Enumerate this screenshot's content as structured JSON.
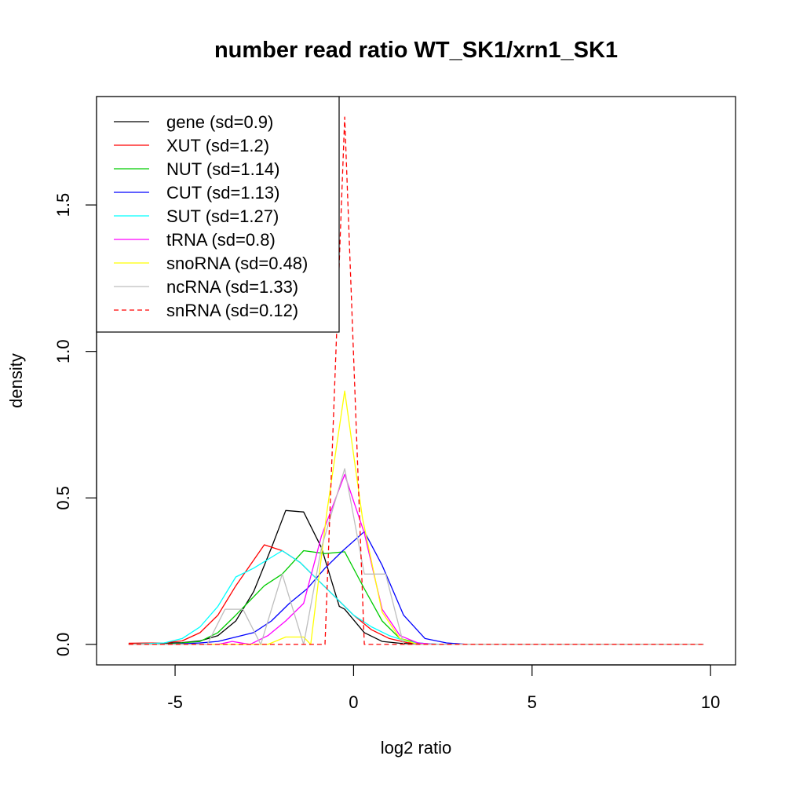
{
  "chart_data": {
    "type": "line",
    "title": "number read ratio WT_SK1/xrn1_SK1",
    "xlabel": "log2 ratio",
    "ylabel": "density",
    "xlim": [
      -7.2,
      10.7
    ],
    "ylim": [
      -0.07,
      1.87
    ],
    "x_ticks": [
      -5,
      0,
      5,
      10
    ],
    "y_ticks": [
      0.0,
      0.5,
      1.0,
      1.5
    ],
    "x_tick_labels": [
      "-5",
      "0",
      "5",
      "10"
    ],
    "y_tick_labels": [
      "0.0",
      "0.5",
      "1.0",
      "1.5"
    ],
    "legend_position": "top-left",
    "series": [
      {
        "name": "gene (sd=0.9)",
        "color": "#000000",
        "dashed": false,
        "points": [
          [
            -6.3,
            0.003
          ],
          [
            -5.8,
            0.004
          ],
          [
            -5.3,
            0.004
          ],
          [
            -4.8,
            0.006
          ],
          [
            -4.3,
            0.012
          ],
          [
            -3.8,
            0.03
          ],
          [
            -3.3,
            0.08
          ],
          [
            -2.8,
            0.18
          ],
          [
            -2.3,
            0.33
          ],
          [
            -1.9,
            0.457
          ],
          [
            -1.4,
            0.452
          ],
          [
            -0.9,
            0.33
          ],
          [
            -0.4,
            0.13
          ],
          [
            -0.25,
            0.12
          ],
          [
            0.3,
            0.04
          ],
          [
            0.8,
            0.01
          ],
          [
            1.3,
            0.004
          ],
          [
            1.8,
            0.001
          ],
          [
            2.5,
            0.0
          ],
          [
            3.5,
            0.0
          ],
          [
            9.8,
            0.0
          ]
        ]
      },
      {
        "name": "XUT (sd=1.2)",
        "color": "#ff0000",
        "dashed": false,
        "points": [
          [
            -6.3,
            0.004
          ],
          [
            -5.3,
            0.005
          ],
          [
            -4.8,
            0.012
          ],
          [
            -4.3,
            0.04
          ],
          [
            -3.8,
            0.1
          ],
          [
            -3.3,
            0.2
          ],
          [
            -2.5,
            0.34
          ],
          [
            -2.0,
            0.32
          ],
          [
            -1.5,
            0.28
          ],
          [
            -1.0,
            0.22
          ],
          [
            -0.5,
            0.16
          ],
          [
            0.0,
            0.1
          ],
          [
            0.5,
            0.05
          ],
          [
            1.0,
            0.02
          ],
          [
            1.5,
            0.006
          ],
          [
            2.0,
            0.002
          ],
          [
            2.5,
            0.0
          ],
          [
            9.8,
            0.0
          ]
        ]
      },
      {
        "name": "NUT (sd=1.14)",
        "color": "#00cc00",
        "dashed": false,
        "points": [
          [
            -6.3,
            0.0
          ],
          [
            -5.3,
            0.0
          ],
          [
            -4.8,
            0.005
          ],
          [
            -4.3,
            0.01
          ],
          [
            -3.8,
            0.04
          ],
          [
            -3.3,
            0.1
          ],
          [
            -2.5,
            0.2
          ],
          [
            -2.0,
            0.24
          ],
          [
            -1.4,
            0.32
          ],
          [
            -0.8,
            0.31
          ],
          [
            -0.25,
            0.316
          ],
          [
            0.3,
            0.19
          ],
          [
            0.8,
            0.08
          ],
          [
            1.3,
            0.02
          ],
          [
            1.8,
            0.005
          ],
          [
            2.3,
            0.0
          ],
          [
            9.8,
            0.0
          ]
        ]
      },
      {
        "name": "CUT (sd=1.13)",
        "color": "#0000ff",
        "dashed": false,
        "points": [
          [
            -6.3,
            0.0
          ],
          [
            -5.3,
            0.0
          ],
          [
            -4.8,
            0.002
          ],
          [
            -4.3,
            0.005
          ],
          [
            -3.8,
            0.01
          ],
          [
            -3.3,
            0.025
          ],
          [
            -2.8,
            0.04
          ],
          [
            -2.3,
            0.08
          ],
          [
            -1.8,
            0.14
          ],
          [
            -1.3,
            0.19
          ],
          [
            -0.8,
            0.26
          ],
          [
            -0.3,
            0.32
          ],
          [
            0.3,
            0.385
          ],
          [
            0.8,
            0.27
          ],
          [
            1.4,
            0.1
          ],
          [
            2.0,
            0.02
          ],
          [
            2.6,
            0.005
          ],
          [
            3.2,
            0.0
          ],
          [
            9.8,
            0.0
          ]
        ]
      },
      {
        "name": "SUT (sd=1.27)",
        "color": "#00ffff",
        "dashed": false,
        "points": [
          [
            -6.3,
            0.0
          ],
          [
            -5.3,
            0.005
          ],
          [
            -4.8,
            0.02
          ],
          [
            -4.3,
            0.06
          ],
          [
            -3.8,
            0.13
          ],
          [
            -3.3,
            0.23
          ],
          [
            -2.8,
            0.26
          ],
          [
            -2.0,
            0.32
          ],
          [
            -1.5,
            0.28
          ],
          [
            -1.0,
            0.22
          ],
          [
            -0.5,
            0.16
          ],
          [
            0.0,
            0.1
          ],
          [
            0.5,
            0.06
          ],
          [
            1.0,
            0.03
          ],
          [
            1.5,
            0.01
          ],
          [
            2.0,
            0.003
          ],
          [
            2.5,
            0.0
          ],
          [
            9.8,
            0.0
          ]
        ]
      },
      {
        "name": "tRNA (sd=0.8)",
        "color": "#ff00ff",
        "dashed": false,
        "points": [
          [
            -6.3,
            0.0
          ],
          [
            -4.3,
            0.0
          ],
          [
            -3.8,
            0.0
          ],
          [
            -3.4,
            0.01
          ],
          [
            -2.9,
            0.0
          ],
          [
            -2.4,
            0.03
          ],
          [
            -1.9,
            0.08
          ],
          [
            -1.4,
            0.14
          ],
          [
            -0.9,
            0.37
          ],
          [
            -0.25,
            0.58
          ],
          [
            0.3,
            0.38
          ],
          [
            0.8,
            0.12
          ],
          [
            1.3,
            0.03
          ],
          [
            1.8,
            0.005
          ],
          [
            2.3,
            0.0
          ],
          [
            9.8,
            0.0
          ]
        ]
      },
      {
        "name": "snoRNA (sd=0.48)",
        "color": "#ffff00",
        "dashed": false,
        "points": [
          [
            -6.3,
            0.0
          ],
          [
            -2.4,
            0.0
          ],
          [
            -1.9,
            0.025
          ],
          [
            -1.4,
            0.025
          ],
          [
            -1.2,
            0.0
          ],
          [
            -0.75,
            0.45
          ],
          [
            -0.25,
            0.865
          ],
          [
            0.25,
            0.43
          ],
          [
            0.8,
            0.11
          ],
          [
            1.3,
            0.02
          ],
          [
            1.8,
            0.0
          ],
          [
            9.8,
            0.0
          ]
        ]
      },
      {
        "name": "ncRNA (sd=1.33)",
        "color": "#bebebe",
        "dashed": false,
        "points": [
          [
            -6.3,
            0.0
          ],
          [
            -4.1,
            0.0
          ],
          [
            -3.6,
            0.12
          ],
          [
            -3.1,
            0.12
          ],
          [
            -2.6,
            0.0
          ],
          [
            -2.0,
            0.24
          ],
          [
            -1.4,
            0.0
          ],
          [
            -0.9,
            0.33
          ],
          [
            -0.25,
            0.6
          ],
          [
            0.3,
            0.24
          ],
          [
            0.9,
            0.24
          ],
          [
            1.4,
            0.0
          ],
          [
            9.8,
            0.0
          ]
        ]
      },
      {
        "name": "snRNA (sd=0.12)",
        "color": "#ff0000",
        "dashed": true,
        "points": [
          [
            -6.3,
            0.0
          ],
          [
            -0.8,
            0.0
          ],
          [
            -0.25,
            1.8
          ],
          [
            0.3,
            0.0
          ],
          [
            9.8,
            0.0
          ]
        ]
      }
    ]
  }
}
